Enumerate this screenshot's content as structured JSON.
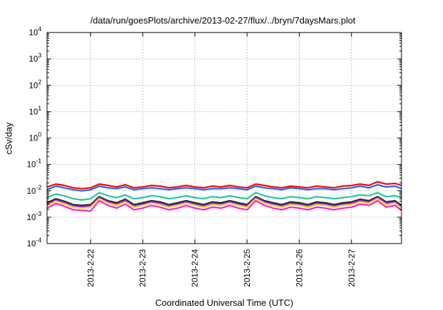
{
  "chart_data": {
    "type": "line",
    "title": "/data/run/goesPlots/archive/2013-02-27/flux/../bryn/7daysMars.plot",
    "xlabel": "Coordinated Universal Time (UTC)",
    "ylabel": "cSv/day",
    "y_scale": "log",
    "ylim": [
      0.0001,
      10000
    ],
    "y_ticks": [
      {
        "mant": "10",
        "exp": "-4",
        "value": 0.0001
      },
      {
        "mant": "10",
        "exp": "-3",
        "value": 0.001
      },
      {
        "mant": "10",
        "exp": "-2",
        "value": 0.01
      },
      {
        "mant": "10",
        "exp": "-1",
        "value": 0.1
      },
      {
        "mant": "10",
        "exp": "0",
        "value": 1
      },
      {
        "mant": "10",
        "exp": "1",
        "value": 10
      },
      {
        "mant": "10",
        "exp": "2",
        "value": 100
      },
      {
        "mant": "10",
        "exp": "3",
        "value": 1000
      },
      {
        "mant": "10",
        "exp": "4",
        "value": 10000
      }
    ],
    "xlim": [
      "2013-02-21 04:00",
      "2013-02-27 23:00"
    ],
    "x_ticks": [
      {
        "label": "2013-2-22",
        "date": "2013-02-22"
      },
      {
        "label": "2013-2-23",
        "date": "2013-02-23"
      },
      {
        "label": "2013-2-24",
        "date": "2013-02-24"
      },
      {
        "label": "2013-2-25",
        "date": "2013-02-25"
      },
      {
        "label": "2013-2-26",
        "date": "2013-02-26"
      },
      {
        "label": "2013-2-27",
        "date": "2013-02-27"
      }
    ],
    "grid": true,
    "legend": "none",
    "series": [
      {
        "color": "#ff0000",
        "x": [
          "2013-02-21 04:00",
          "2013-02-21 08:00",
          "2013-02-21 12:00",
          "2013-02-21 16:00",
          "2013-02-21 20:00",
          "2013-02-22 00:00",
          "2013-02-22 04:00",
          "2013-02-22 08:00",
          "2013-02-22 12:00",
          "2013-02-22 16:00",
          "2013-02-22 20:00",
          "2013-02-23 00:00",
          "2013-02-23 04:00",
          "2013-02-23 08:00",
          "2013-02-23 12:00",
          "2013-02-23 16:00",
          "2013-02-23 20:00",
          "2013-02-24 00:00",
          "2013-02-24 04:00",
          "2013-02-24 08:00",
          "2013-02-24 12:00",
          "2013-02-24 16:00",
          "2013-02-24 20:00",
          "2013-02-25 00:00",
          "2013-02-25 04:00",
          "2013-02-25 08:00",
          "2013-02-25 12:00",
          "2013-02-25 16:00",
          "2013-02-25 20:00",
          "2013-02-26 00:00",
          "2013-02-26 04:00",
          "2013-02-26 08:00",
          "2013-02-26 12:00",
          "2013-02-26 16:00",
          "2013-02-26 20:00",
          "2013-02-27 00:00",
          "2013-02-27 04:00",
          "2013-02-27 08:00",
          "2013-02-27 12:00",
          "2013-02-27 16:00",
          "2013-02-27 20:00",
          "2013-02-27 23:00"
        ],
        "values": [
          0.014,
          0.018,
          0.016,
          0.013,
          0.012,
          0.013,
          0.018,
          0.016,
          0.014,
          0.017,
          0.013,
          0.014,
          0.016,
          0.015,
          0.013,
          0.014,
          0.016,
          0.014,
          0.013,
          0.015,
          0.014,
          0.016,
          0.014,
          0.013,
          0.018,
          0.016,
          0.014,
          0.013,
          0.015,
          0.014,
          0.013,
          0.015,
          0.014,
          0.013,
          0.015,
          0.016,
          0.018,
          0.016,
          0.022,
          0.018,
          0.019,
          0.016
        ]
      },
      {
        "color": "#1f5fff",
        "x": [
          "2013-02-21 04:00",
          "2013-02-21 08:00",
          "2013-02-21 12:00",
          "2013-02-21 16:00",
          "2013-02-21 20:00",
          "2013-02-22 00:00",
          "2013-02-22 04:00",
          "2013-02-22 08:00",
          "2013-02-22 12:00",
          "2013-02-22 16:00",
          "2013-02-22 20:00",
          "2013-02-23 00:00",
          "2013-02-23 04:00",
          "2013-02-23 08:00",
          "2013-02-23 12:00",
          "2013-02-23 16:00",
          "2013-02-23 20:00",
          "2013-02-24 00:00",
          "2013-02-24 04:00",
          "2013-02-24 08:00",
          "2013-02-24 12:00",
          "2013-02-24 16:00",
          "2013-02-24 20:00",
          "2013-02-25 00:00",
          "2013-02-25 04:00",
          "2013-02-25 08:00",
          "2013-02-25 12:00",
          "2013-02-25 16:00",
          "2013-02-25 20:00",
          "2013-02-26 00:00",
          "2013-02-26 04:00",
          "2013-02-26 08:00",
          "2013-02-26 12:00",
          "2013-02-26 16:00",
          "2013-02-26 20:00",
          "2013-02-27 00:00",
          "2013-02-27 04:00",
          "2013-02-27 08:00",
          "2013-02-27 12:00",
          "2013-02-27 16:00",
          "2013-02-27 20:00",
          "2013-02-27 23:00"
        ],
        "values": [
          0.011,
          0.015,
          0.013,
          0.011,
          0.01,
          0.011,
          0.015,
          0.013,
          0.012,
          0.014,
          0.011,
          0.012,
          0.013,
          0.012,
          0.011,
          0.012,
          0.013,
          0.012,
          0.011,
          0.012,
          0.012,
          0.013,
          0.012,
          0.011,
          0.015,
          0.013,
          0.012,
          0.011,
          0.013,
          0.012,
          0.011,
          0.012,
          0.012,
          0.011,
          0.012,
          0.013,
          0.015,
          0.013,
          0.017,
          0.014,
          0.015,
          0.012
        ]
      },
      {
        "color": "#20c898",
        "x": [
          "2013-02-21 04:00",
          "2013-02-21 08:00",
          "2013-02-21 12:00",
          "2013-02-21 16:00",
          "2013-02-21 20:00",
          "2013-02-22 00:00",
          "2013-02-22 04:00",
          "2013-02-22 08:00",
          "2013-02-22 12:00",
          "2013-02-22 16:00",
          "2013-02-22 20:00",
          "2013-02-23 00:00",
          "2013-02-23 04:00",
          "2013-02-23 08:00",
          "2013-02-23 12:00",
          "2013-02-23 16:00",
          "2013-02-23 20:00",
          "2013-02-24 00:00",
          "2013-02-24 04:00",
          "2013-02-24 08:00",
          "2013-02-24 12:00",
          "2013-02-24 16:00",
          "2013-02-24 20:00",
          "2013-02-25 00:00",
          "2013-02-25 04:00",
          "2013-02-25 08:00",
          "2013-02-25 12:00",
          "2013-02-25 16:00",
          "2013-02-25 20:00",
          "2013-02-26 00:00",
          "2013-02-26 04:00",
          "2013-02-26 08:00",
          "2013-02-26 12:00",
          "2013-02-26 16:00",
          "2013-02-26 20:00",
          "2013-02-27 00:00",
          "2013-02-27 04:00",
          "2013-02-27 08:00",
          "2013-02-27 12:00",
          "2013-02-27 16:00",
          "2013-02-27 20:00",
          "2013-02-27 23:00"
        ],
        "values": [
          0.0055,
          0.0075,
          0.0065,
          0.005,
          0.0045,
          0.005,
          0.0085,
          0.0065,
          0.0055,
          0.007,
          0.005,
          0.0055,
          0.0065,
          0.006,
          0.005,
          0.0055,
          0.0065,
          0.0055,
          0.005,
          0.006,
          0.0055,
          0.0065,
          0.0055,
          0.005,
          0.0085,
          0.0065,
          0.0055,
          0.005,
          0.006,
          0.0055,
          0.005,
          0.006,
          0.0055,
          0.005,
          0.0055,
          0.006,
          0.007,
          0.0065,
          0.0085,
          0.006,
          0.0065,
          0.0055
        ]
      },
      {
        "color": "#222222",
        "x": [
          "2013-02-21 04:00",
          "2013-02-21 08:00",
          "2013-02-21 12:00",
          "2013-02-21 16:00",
          "2013-02-21 20:00",
          "2013-02-22 00:00",
          "2013-02-22 04:00",
          "2013-02-22 08:00",
          "2013-02-22 12:00",
          "2013-02-22 16:00",
          "2013-02-22 20:00",
          "2013-02-23 00:00",
          "2013-02-23 04:00",
          "2013-02-23 08:00",
          "2013-02-23 12:00",
          "2013-02-23 16:00",
          "2013-02-23 20:00",
          "2013-02-24 00:00",
          "2013-02-24 04:00",
          "2013-02-24 08:00",
          "2013-02-24 12:00",
          "2013-02-24 16:00",
          "2013-02-24 20:00",
          "2013-02-25 00:00",
          "2013-02-25 04:00",
          "2013-02-25 08:00",
          "2013-02-25 12:00",
          "2013-02-25 16:00",
          "2013-02-25 20:00",
          "2013-02-26 00:00",
          "2013-02-26 04:00",
          "2013-02-26 08:00",
          "2013-02-26 12:00",
          "2013-02-26 16:00",
          "2013-02-26 20:00",
          "2013-02-27 00:00",
          "2013-02-27 04:00",
          "2013-02-27 08:00",
          "2013-02-27 12:00",
          "2013-02-27 16:00",
          "2013-02-27 20:00",
          "2013-02-27 23:00"
        ],
        "values": [
          0.0035,
          0.005,
          0.004,
          0.003,
          0.0028,
          0.003,
          0.006,
          0.0042,
          0.0035,
          0.0048,
          0.003,
          0.0035,
          0.0042,
          0.0038,
          0.003,
          0.0035,
          0.0042,
          0.0035,
          0.003,
          0.0038,
          0.0035,
          0.0042,
          0.0035,
          0.003,
          0.006,
          0.0042,
          0.0035,
          0.003,
          0.0038,
          0.0035,
          0.003,
          0.0038,
          0.0035,
          0.003,
          0.0035,
          0.0038,
          0.0048,
          0.0042,
          0.006,
          0.0038,
          0.0042,
          0.0028
        ]
      },
      {
        "color": "#8a2be2",
        "x": [
          "2013-02-21 04:00",
          "2013-02-21 08:00",
          "2013-02-21 12:00",
          "2013-02-21 16:00",
          "2013-02-21 20:00",
          "2013-02-22 00:00",
          "2013-02-22 04:00",
          "2013-02-22 08:00",
          "2013-02-22 12:00",
          "2013-02-22 16:00",
          "2013-02-22 20:00",
          "2013-02-23 00:00",
          "2013-02-23 04:00",
          "2013-02-23 08:00",
          "2013-02-23 12:00",
          "2013-02-23 16:00",
          "2013-02-23 20:00",
          "2013-02-24 00:00",
          "2013-02-24 04:00",
          "2013-02-24 08:00",
          "2013-02-24 12:00",
          "2013-02-24 16:00",
          "2013-02-24 20:00",
          "2013-02-25 00:00",
          "2013-02-25 04:00",
          "2013-02-25 08:00",
          "2013-02-25 12:00",
          "2013-02-25 16:00",
          "2013-02-25 20:00",
          "2013-02-26 00:00",
          "2013-02-26 04:00",
          "2013-02-26 08:00",
          "2013-02-26 12:00",
          "2013-02-26 16:00",
          "2013-02-26 20:00",
          "2013-02-27 00:00",
          "2013-02-27 04:00",
          "2013-02-27 08:00",
          "2013-02-27 12:00",
          "2013-02-27 16:00",
          "2013-02-27 20:00",
          "2013-02-27 23:00"
        ],
        "values": [
          0.003,
          0.0045,
          0.0036,
          0.0027,
          0.0025,
          0.0027,
          0.0055,
          0.0038,
          0.0031,
          0.0043,
          0.0027,
          0.0031,
          0.0038,
          0.0034,
          0.0027,
          0.0031,
          0.0038,
          0.0031,
          0.0027,
          0.0034,
          0.0031,
          0.0038,
          0.0031,
          0.0027,
          0.0055,
          0.0038,
          0.0031,
          0.0027,
          0.0034,
          0.0031,
          0.0027,
          0.0034,
          0.0031,
          0.0027,
          0.0031,
          0.0034,
          0.0043,
          0.0038,
          0.0055,
          0.0034,
          0.0038,
          0.0025
        ]
      },
      {
        "color": "#ffd21f",
        "x": [
          "2013-02-21 04:00",
          "2013-02-21 08:00",
          "2013-02-21 12:00",
          "2013-02-21 16:00",
          "2013-02-21 20:00",
          "2013-02-22 00:00",
          "2013-02-22 04:00",
          "2013-02-22 08:00",
          "2013-02-22 12:00",
          "2013-02-22 16:00",
          "2013-02-22 20:00",
          "2013-02-23 00:00",
          "2013-02-23 04:00",
          "2013-02-23 08:00",
          "2013-02-23 12:00",
          "2013-02-23 16:00",
          "2013-02-23 20:00",
          "2013-02-24 00:00",
          "2013-02-24 04:00",
          "2013-02-24 08:00",
          "2013-02-24 12:00",
          "2013-02-24 16:00",
          "2013-02-24 20:00",
          "2013-02-25 00:00",
          "2013-02-25 04:00",
          "2013-02-25 08:00",
          "2013-02-25 12:00",
          "2013-02-25 16:00",
          "2013-02-25 20:00",
          "2013-02-26 00:00",
          "2013-02-26 04:00",
          "2013-02-26 08:00",
          "2013-02-26 12:00",
          "2013-02-26 16:00",
          "2013-02-26 20:00",
          "2013-02-27 00:00",
          "2013-02-27 04:00",
          "2013-02-27 08:00",
          "2013-02-27 12:00",
          "2013-02-27 16:00",
          "2013-02-27 20:00",
          "2013-02-27 23:00"
        ],
        "values": [
          0.0027,
          0.004,
          0.0032,
          0.0024,
          0.0022,
          0.0024,
          0.005,
          0.0034,
          0.0028,
          0.0038,
          0.0024,
          0.0028,
          0.0034,
          0.003,
          0.0024,
          0.0028,
          0.0034,
          0.0028,
          0.0024,
          0.003,
          0.0028,
          0.0034,
          0.0028,
          0.0024,
          0.005,
          0.0034,
          0.0028,
          0.0024,
          0.003,
          0.0028,
          0.0024,
          0.003,
          0.0028,
          0.0024,
          0.0028,
          0.003,
          0.0038,
          0.0034,
          0.005,
          0.003,
          0.0034,
          0.0022
        ]
      },
      {
        "color": "#ff20c8",
        "x": [
          "2013-02-21 04:00",
          "2013-02-21 08:00",
          "2013-02-21 12:00",
          "2013-02-21 16:00",
          "2013-02-21 20:00",
          "2013-02-22 00:00",
          "2013-02-22 04:00",
          "2013-02-22 08:00",
          "2013-02-22 12:00",
          "2013-02-22 16:00",
          "2013-02-22 20:00",
          "2013-02-23 00:00",
          "2013-02-23 04:00",
          "2013-02-23 08:00",
          "2013-02-23 12:00",
          "2013-02-23 16:00",
          "2013-02-23 20:00",
          "2013-02-24 00:00",
          "2013-02-24 04:00",
          "2013-02-24 08:00",
          "2013-02-24 12:00",
          "2013-02-24 16:00",
          "2013-02-24 20:00",
          "2013-02-25 00:00",
          "2013-02-25 04:00",
          "2013-02-25 08:00",
          "2013-02-25 12:00",
          "2013-02-25 16:00",
          "2013-02-25 20:00",
          "2013-02-26 00:00",
          "2013-02-26 04:00",
          "2013-02-26 08:00",
          "2013-02-26 12:00",
          "2013-02-26 16:00",
          "2013-02-26 20:00",
          "2013-02-27 00:00",
          "2013-02-27 04:00",
          "2013-02-27 08:00",
          "2013-02-27 12:00",
          "2013-02-27 16:00",
          "2013-02-27 20:00",
          "2013-02-27 23:00"
        ],
        "values": [
          0.0022,
          0.0033,
          0.0026,
          0.0019,
          0.0018,
          0.0017,
          0.0042,
          0.0028,
          0.0022,
          0.0031,
          0.0019,
          0.0022,
          0.0028,
          0.0024,
          0.0019,
          0.0022,
          0.0028,
          0.0022,
          0.0019,
          0.0024,
          0.0022,
          0.0028,
          0.0022,
          0.0019,
          0.0042,
          0.0028,
          0.0022,
          0.0019,
          0.0024,
          0.0022,
          0.0019,
          0.0024,
          0.0022,
          0.0019,
          0.0022,
          0.0024,
          0.0031,
          0.0028,
          0.0042,
          0.0024,
          0.0028,
          0.0018
        ]
      }
    ]
  }
}
